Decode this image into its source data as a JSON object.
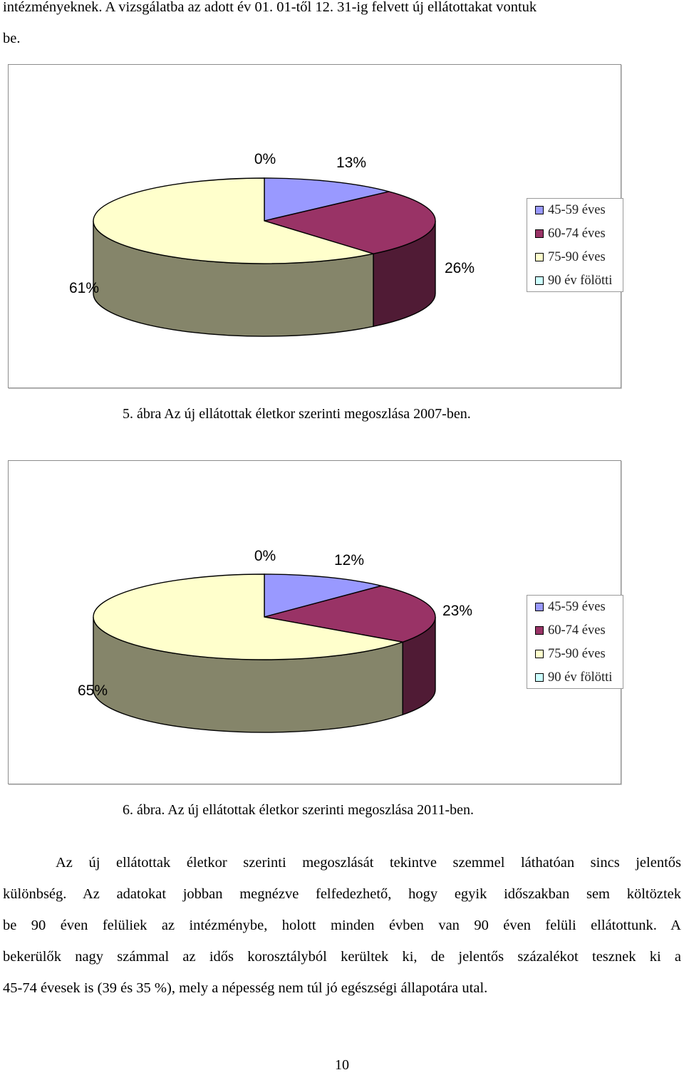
{
  "intro": {
    "line1": "intézményeknek. A vizsgálatba az adott év 01. 01-től 12. 31-ig felvett új ellátottakat vontuk",
    "line2": "be."
  },
  "chart_data": [
    {
      "type": "pie",
      "categories": [
        "45-59 éves",
        "60-74 éves",
        "75-90 éves",
        "90 év fölötti"
      ],
      "values": [
        13,
        26,
        61,
        0
      ],
      "data_labels": [
        "13%",
        "26%",
        "61%",
        "0%"
      ],
      "colors": [
        "#9999ff",
        "#993366",
        "#ffffcc",
        "#ccffff"
      ],
      "legend": "right",
      "style": "3d"
    },
    {
      "type": "pie",
      "categories": [
        "45-59 éves",
        "60-74 éves",
        "75-90 éves",
        "90 év fölötti"
      ],
      "values": [
        12,
        23,
        65,
        0
      ],
      "data_labels": [
        "12%",
        "23%",
        "65%",
        "0%"
      ],
      "colors": [
        "#9999ff",
        "#993366",
        "#ffffcc",
        "#ccffff"
      ],
      "legend": "right",
      "style": "3d"
    }
  ],
  "captions": {
    "fig5": "5. ábra Az új ellátottak életkor szerinti megoszlása 2007-ben.",
    "fig6": "6. ábra. Az új ellátottak életkor szerinti megoszlása 2011-ben."
  },
  "paragraph": {
    "lines": [
      "Az új ellátottak életkor szerinti megoszlását tekintve szemmel láthatóan sincs jelentős",
      "különbség. Az adatokat jobban megnézve felfedezhető, hogy egyik időszakban sem költöztek",
      "be 90 éven felüliek az intézménybe, holott minden évben van 90 éven felüli ellátottunk. A",
      "bekerülők nagy számmal az idős korosztályból kerültek ki, de jelentős százalékot tesznek ki a",
      "45-74 évesek is (39 és 35 %), mely a népesség nem túl jó egészségi állapotára utal."
    ]
  },
  "page_number": "10"
}
